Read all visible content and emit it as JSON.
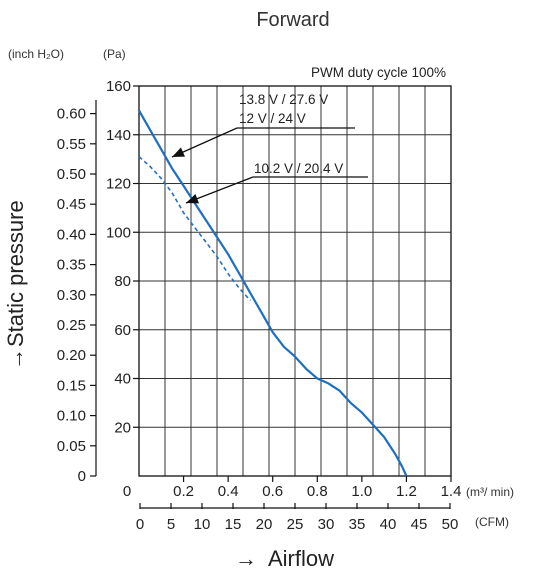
{
  "chart_data": {
    "type": "line",
    "title": "Forward",
    "subtitle": "PWM duty cycle 100%",
    "xlabel": "Airflow",
    "ylabel": "Static pressure",
    "x_unit_primary": "(m³/ min)",
    "x_unit_secondary": "(CFM)",
    "y_unit_left": "(inch H₂O)",
    "y_unit_right": "(Pa)",
    "xlim": [
      0,
      1.4
    ],
    "ylim": [
      0,
      160
    ],
    "grid": true,
    "x_ticks": [
      "0",
      "0.2",
      "0.4",
      "0.6",
      "0.8",
      "1.0",
      "1.2",
      "1.4"
    ],
    "x_ticks_cfm": [
      "0",
      "5",
      "10",
      "15",
      "20",
      "25",
      "30",
      "35",
      "40",
      "45",
      "50"
    ],
    "y_ticks_pa": [
      "20",
      "40",
      "60",
      "80",
      "100",
      "120",
      "140",
      "160"
    ],
    "y_ticks_inch": [
      "0",
      "0.05",
      "0.10",
      "0.15",
      "0.20",
      "0.25",
      "0.30",
      "0.35",
      "0.40",
      "0.45",
      "0.50",
      "0.55",
      "0.60"
    ],
    "series": [
      {
        "name": "13.8 V / 27.6 V\n12 V / 24 V",
        "style": "solid",
        "color": "#1f6fc1",
        "x": [
          0,
          0.05,
          0.1,
          0.15,
          0.2,
          0.25,
          0.3,
          0.35,
          0.4,
          0.45,
          0.5,
          0.55,
          0.6,
          0.65,
          0.7,
          0.75,
          0.8,
          0.85,
          0.9,
          0.95,
          1.0,
          1.05,
          1.1,
          1.15,
          1.18,
          1.2
        ],
        "y": [
          150,
          142,
          134,
          126,
          119,
          112,
          105,
          98,
          91,
          83,
          75,
          67,
          59,
          53,
          49,
          44,
          40,
          38,
          35,
          30,
          26,
          21,
          16,
          9,
          4,
          0
        ]
      },
      {
        "name": "10.2 V / 20.4 V",
        "style": "dashed",
        "color": "#1f6fc1",
        "x": [
          0,
          0.05,
          0.1,
          0.15,
          0.2,
          0.25,
          0.3,
          0.35,
          0.4,
          0.45,
          0.5
        ],
        "y": [
          131,
          127,
          122,
          116,
          108,
          102,
          96,
          90,
          83,
          77,
          72
        ]
      }
    ]
  }
}
